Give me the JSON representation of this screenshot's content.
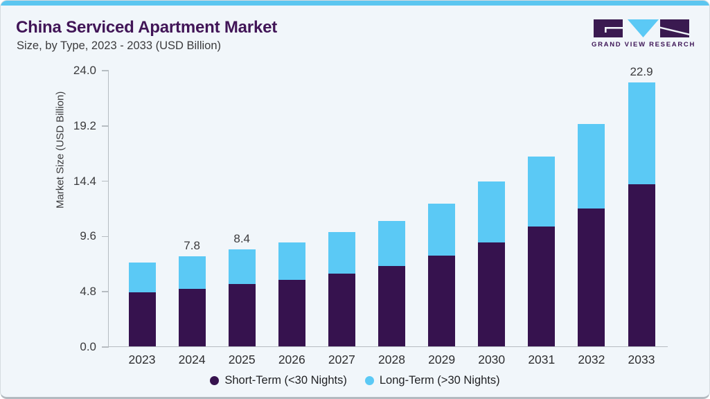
{
  "header": {
    "title": "China Serviced Apartment Market",
    "subtitle": "Size, by Type, 2023 - 2033 (USD Billion)"
  },
  "logo": {
    "text": "GRAND VIEW RESEARCH"
  },
  "theme": {
    "accent_blue": "#5cc6f0",
    "brand_purple": "#411557",
    "logo_purple": "#3a1a50",
    "card_background": "#f1f6fa",
    "axis_gray": "#b6bcc1"
  },
  "chart_data": {
    "type": "bar",
    "stacked": true,
    "title": "China Serviced Apartment Market Size, by Type, 2023 - 2033 (USD Billion)",
    "categories": [
      "2023",
      "2024",
      "2025",
      "2026",
      "2027",
      "2028",
      "2029",
      "2030",
      "2031",
      "2032",
      "2033"
    ],
    "series": [
      {
        "name": "Short-Term (<30 Nights)",
        "color": "#36124e",
        "values": [
          4.7,
          5.0,
          5.4,
          5.8,
          6.3,
          7.0,
          7.9,
          9.0,
          10.4,
          12.0,
          14.1
        ]
      },
      {
        "name": "Long-Term (>30 Nights)",
        "color": "#5bc9f5",
        "values": [
          2.6,
          2.8,
          3.0,
          3.2,
          3.6,
          3.9,
          4.5,
          5.3,
          6.1,
          7.3,
          8.8
        ]
      }
    ],
    "totals": [
      7.3,
      7.8,
      8.4,
      9.0,
      9.9,
      10.9,
      12.4,
      14.3,
      16.5,
      19.3,
      22.9
    ],
    "bar_labels": [
      "",
      "7.8",
      "8.4",
      "",
      "",
      "",
      "",
      "",
      "",
      "",
      "22.9"
    ],
    "xlabel": "",
    "ylabel": "Market Size (USD Billion)",
    "ylim": [
      0,
      24
    ],
    "yticks": [
      0.0,
      4.8,
      9.6,
      14.4,
      19.2,
      24.0
    ],
    "ytick_labels": [
      "0.0",
      "4.8",
      "9.6",
      "14.4",
      "19.2",
      "24.0"
    ],
    "grid": false,
    "legend_position": "bottom"
  }
}
